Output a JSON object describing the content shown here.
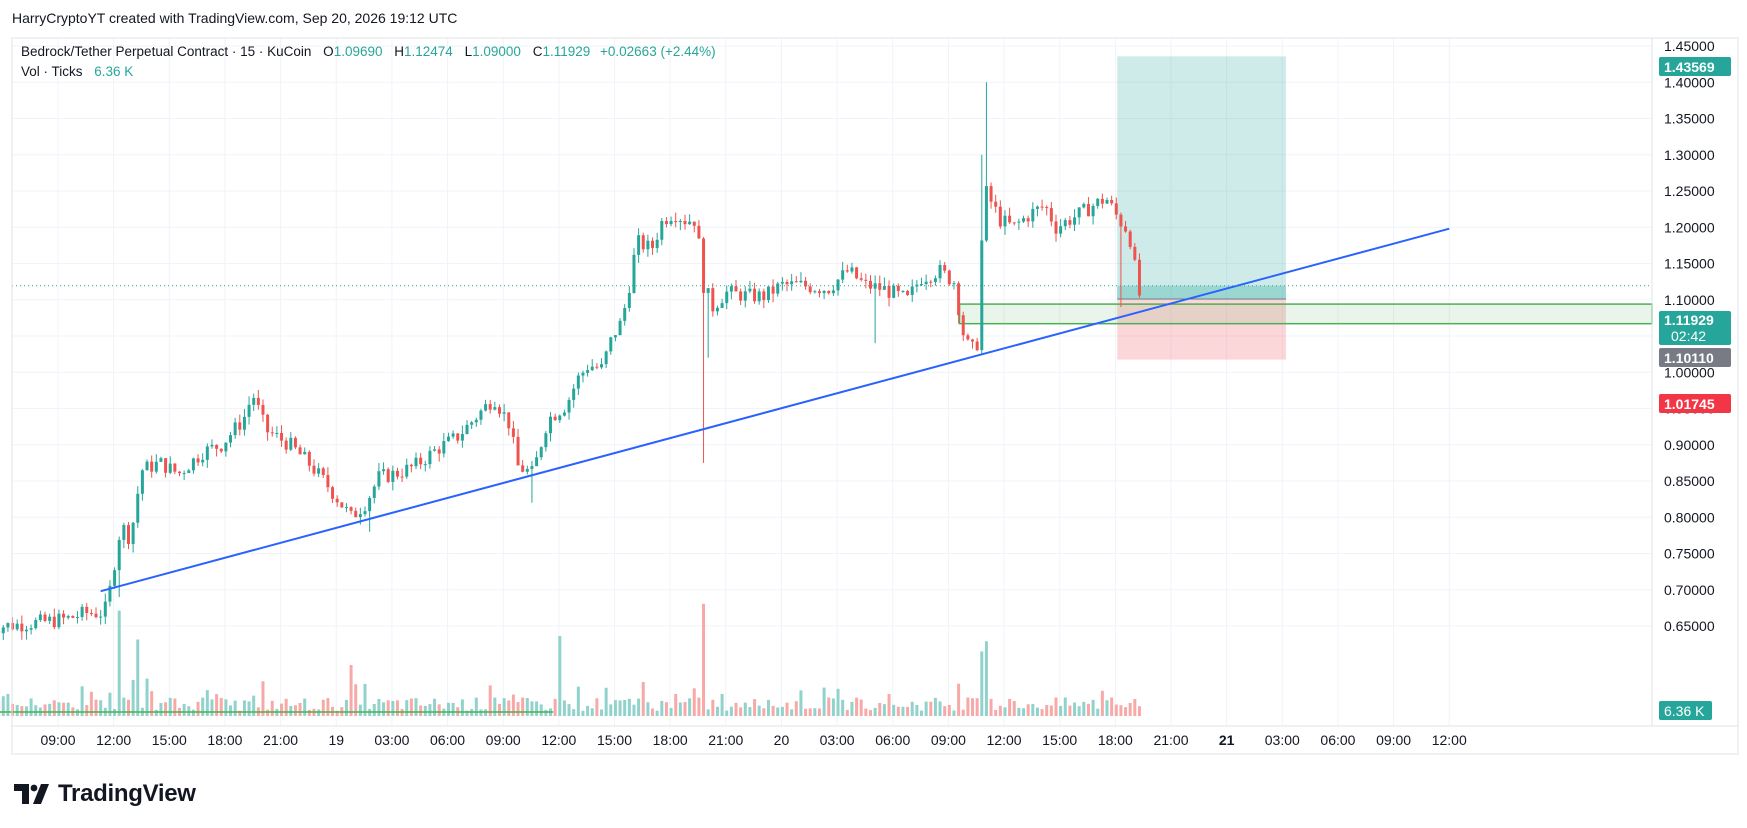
{
  "header": {
    "credit": "HarryCryptoYT created with TradingView.com, Sep 20, 2026 19:12 UTC"
  },
  "legend": {
    "symbol": "Bedrock/Tether Perpetual Contract · 15 · KuCoin",
    "o_label": "O",
    "o_value": "1.09690",
    "h_label": "H",
    "h_value": "1.12474",
    "l_label": "L",
    "l_value": "1.09000",
    "c_label": "C",
    "c_value": "1.11929",
    "change": "+0.02663 (+2.44%)",
    "vol_label": "Vol · Ticks",
    "vol_value": "6.36 K"
  },
  "price_tags": {
    "target": "1.43569",
    "last_price": "1.11929",
    "countdown": "02:42",
    "entry": "1.10110",
    "stop": "1.01745",
    "volume": "6.36 K"
  },
  "brand": {
    "name": "TradingView"
  },
  "colors": {
    "up": "#26a69a",
    "down": "#ef5350",
    "vol_up": "#92d2cc",
    "vol_down": "#f7a9a7",
    "trendline": "#2962ff",
    "zone_border": "#4caf50",
    "profit_zone": "#26a69a",
    "loss_zone": "#f23645",
    "entry_tag": "#787b86"
  },
  "chart_data": {
    "type": "candlestick",
    "interval": "15",
    "y_axis_ticks": [
      "1.45000",
      "1.40000",
      "1.35000",
      "1.30000",
      "1.25000",
      "1.20000",
      "1.15000",
      "1.10000",
      "1.05000",
      "1.00000",
      "0.95000",
      "0.90000",
      "0.85000",
      "0.80000",
      "0.75000",
      "0.70000",
      "0.65000"
    ],
    "ylim": [
      0.625,
      1.455
    ],
    "grid": true,
    "x_axis_ticks": [
      {
        "label": "09:00",
        "h": 9
      },
      {
        "label": "12:00",
        "h": 12
      },
      {
        "label": "15:00",
        "h": 15
      },
      {
        "label": "18:00",
        "h": 18
      },
      {
        "label": "21:00",
        "h": 21
      },
      {
        "label": "19",
        "h": 24,
        "bold": false
      },
      {
        "label": "03:00",
        "h": 27
      },
      {
        "label": "06:00",
        "h": 30
      },
      {
        "label": "09:00",
        "h": 33
      },
      {
        "label": "12:00",
        "h": 36
      },
      {
        "label": "15:00",
        "h": 39
      },
      {
        "label": "18:00",
        "h": 42
      },
      {
        "label": "21:00",
        "h": 45
      },
      {
        "label": "20",
        "h": 48
      },
      {
        "label": "03:00",
        "h": 51
      },
      {
        "label": "06:00",
        "h": 54
      },
      {
        "label": "09:00",
        "h": 57
      },
      {
        "label": "12:00",
        "h": 60
      },
      {
        "label": "15:00",
        "h": 63
      },
      {
        "label": "18:00",
        "h": 66
      },
      {
        "label": "21:00",
        "h": 69
      },
      {
        "label": "21",
        "h": 72,
        "bold": true
      },
      {
        "label": "03:00",
        "h": 75
      },
      {
        "label": "06:00",
        "h": 78
      },
      {
        "label": "09:00",
        "h": 81
      },
      {
        "label": "12:00",
        "h": 84
      }
    ],
    "price_path": [
      {
        "h": 5.3,
        "p": 0.648
      },
      {
        "h": 8,
        "p": 0.655
      },
      {
        "h": 9.5,
        "p": 0.66
      },
      {
        "h": 10.5,
        "p": 0.668
      },
      {
        "h": 11.5,
        "p": 0.668
      },
      {
        "h": 11.8,
        "p": 0.7
      },
      {
        "h": 12.4,
        "p": 0.79
      },
      {
        "h": 12.9,
        "p": 0.77
      },
      {
        "h": 13.5,
        "p": 0.865
      },
      {
        "h": 14.5,
        "p": 0.875
      },
      {
        "h": 15.5,
        "p": 0.86
      },
      {
        "h": 16.8,
        "p": 0.89
      },
      {
        "h": 17.8,
        "p": 0.9
      },
      {
        "h": 19,
        "p": 0.935
      },
      {
        "h": 19.5,
        "p": 0.97
      },
      {
        "h": 20.2,
        "p": 0.92
      },
      {
        "h": 21.5,
        "p": 0.9
      },
      {
        "h": 22.5,
        "p": 0.875
      },
      {
        "h": 23.5,
        "p": 0.845
      },
      {
        "h": 24.8,
        "p": 0.8
      },
      {
        "h": 25.6,
        "p": 0.82
      },
      {
        "h": 26.3,
        "p": 0.855
      },
      {
        "h": 27.2,
        "p": 0.86
      },
      {
        "h": 28.2,
        "p": 0.87
      },
      {
        "h": 29.5,
        "p": 0.895
      },
      {
        "h": 30.5,
        "p": 0.91
      },
      {
        "h": 31.6,
        "p": 0.94
      },
      {
        "h": 32.5,
        "p": 0.965
      },
      {
        "h": 33.3,
        "p": 0.93
      },
      {
        "h": 33.8,
        "p": 0.87
      },
      {
        "h": 34.6,
        "p": 0.86
      },
      {
        "h": 35.4,
        "p": 0.935
      },
      {
        "h": 36.4,
        "p": 0.955
      },
      {
        "h": 37,
        "p": 0.99
      },
      {
        "h": 37.6,
        "p": 1.01
      },
      {
        "h": 38.3,
        "p": 1.005
      },
      {
        "h": 38.9,
        "p": 1.05
      },
      {
        "h": 39.4,
        "p": 1.07
      },
      {
        "h": 39.8,
        "p": 1.12
      },
      {
        "h": 40.2,
        "p": 1.18
      },
      {
        "h": 41,
        "p": 1.17
      },
      {
        "h": 41.6,
        "p": 1.21
      },
      {
        "h": 42.2,
        "p": 1.22
      },
      {
        "h": 42.8,
        "p": 1.21
      },
      {
        "h": 43.4,
        "p": 1.21
      },
      {
        "h": 43.8,
        "p": 1.12
      },
      {
        "h": 44.3,
        "p": 1.09
      },
      {
        "h": 45,
        "p": 1.11
      },
      {
        "h": 46.3,
        "p": 1.105
      },
      {
        "h": 47.1,
        "p": 1.105
      },
      {
        "h": 48,
        "p": 1.12
      },
      {
        "h": 49,
        "p": 1.12
      },
      {
        "h": 50.5,
        "p": 1.115
      },
      {
        "h": 51.6,
        "p": 1.14
      },
      {
        "h": 52.5,
        "p": 1.12
      },
      {
        "h": 53.5,
        "p": 1.115
      },
      {
        "h": 54.8,
        "p": 1.1
      },
      {
        "h": 55.5,
        "p": 1.13
      },
      {
        "h": 56.5,
        "p": 1.14
      },
      {
        "h": 57.3,
        "p": 1.125
      },
      {
        "h": 57.9,
        "p": 1.04
      },
      {
        "h": 58.4,
        "p": 1.03
      },
      {
        "h": 58.7,
        "p": 1.05
      },
      {
        "h": 58.8,
        "p": 1.18
      },
      {
        "h": 59,
        "p": 1.25
      },
      {
        "h": 59.8,
        "p": 1.21
      },
      {
        "h": 60.5,
        "p": 1.2
      },
      {
        "h": 61,
        "p": 1.21
      },
      {
        "h": 61.5,
        "p": 1.22
      },
      {
        "h": 62.2,
        "p": 1.23
      },
      {
        "h": 62.8,
        "p": 1.2
      },
      {
        "h": 63.5,
        "p": 1.21
      },
      {
        "h": 64.2,
        "p": 1.22
      },
      {
        "h": 64.8,
        "p": 1.23
      },
      {
        "h": 65.5,
        "p": 1.24
      },
      {
        "h": 66.2,
        "p": 1.21
      },
      {
        "h": 66.7,
        "p": 1.195
      },
      {
        "h": 67,
        "p": 1.16
      },
      {
        "h": 67.2,
        "p": 1.1
      },
      {
        "h": 67.5,
        "p": 1.119
      }
    ],
    "volume_peaks": [
      {
        "h": 12.4,
        "v": 0.62
      },
      {
        "h": 13.2,
        "v": 0.45
      },
      {
        "h": 13.8,
        "v": 0.22
      },
      {
        "h": 19.5,
        "v": 0.12
      },
      {
        "h": 24.7,
        "v": 0.3
      },
      {
        "h": 32.3,
        "v": 0.18
      },
      {
        "h": 36,
        "v": 0.47
      },
      {
        "h": 40.6,
        "v": 0.2
      },
      {
        "h": 43.8,
        "v": 0.66
      },
      {
        "h": 51,
        "v": 0.16
      },
      {
        "h": 58.7,
        "v": 0.38
      },
      {
        "h": 59,
        "v": 0.44
      },
      {
        "h": 67,
        "v": 0.1
      }
    ],
    "trendline": {
      "from": {
        "h": 11.3,
        "p": 0.698
      },
      "to": {
        "h": 84,
        "p": 1.198
      }
    },
    "long_position": {
      "start_h": 66.1,
      "end_h": 75.2,
      "entry": 1.1011,
      "target": 1.43569,
      "stop": 1.01745
    },
    "zone": {
      "start_h": 57.6,
      "top": 1.094,
      "bottom": 1.067
    },
    "volume_level_line": {
      "from_h": 5.3,
      "to_h": 35.7
    }
  }
}
